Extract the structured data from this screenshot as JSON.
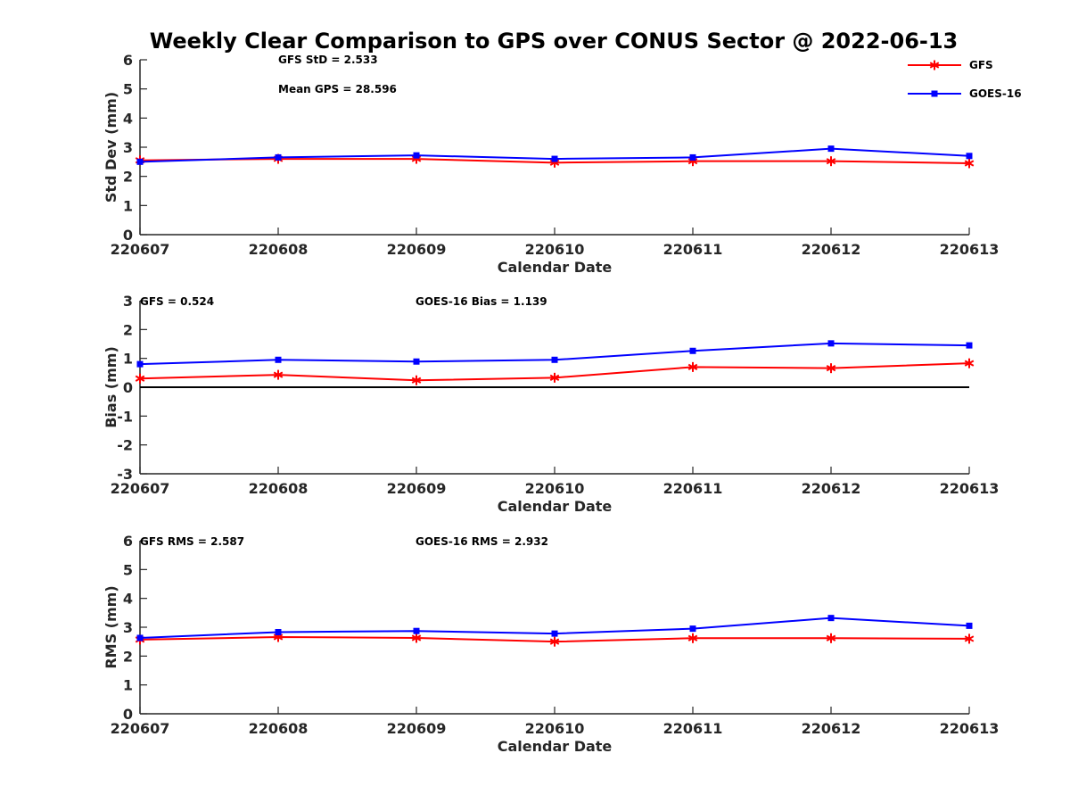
{
  "figure": {
    "title": "Weekly Clear Comparison to GPS over CONUS Sector @ 2022-06-13"
  },
  "legend": {
    "position": "top-right of first panel",
    "entries": [
      {
        "label": "GFS",
        "color": "#ff0000",
        "marker": "asterisk"
      },
      {
        "label": "GOES-16",
        "color": "#0000ff",
        "marker": "square"
      }
    ]
  },
  "chart_data": [
    {
      "type": "line",
      "title": "Weekly Clear Comparison to GPS over CONUS Sector @ 2022-06-13",
      "xlabel": "Calendar Date",
      "ylabel": "Std Dev (mm)",
      "categories": [
        "220607",
        "220608",
        "220609",
        "220610",
        "220611",
        "220612",
        "220613"
      ],
      "ylim": [
        0,
        6
      ],
      "yticks": [
        0,
        1,
        2,
        3,
        4,
        5,
        6
      ],
      "grid": false,
      "zero_line": false,
      "annotations": [
        "GFS StD = 2.533",
        "Mean GPS = 28.596"
      ],
      "series": [
        {
          "name": "GFS",
          "color": "#ff0000",
          "marker": "asterisk",
          "values": [
            2.55,
            2.6,
            2.6,
            2.47,
            2.52,
            2.52,
            2.45
          ]
        },
        {
          "name": "GOES-16",
          "color": "#0000ff",
          "marker": "square",
          "values": [
            2.5,
            2.65,
            2.72,
            2.6,
            2.65,
            2.95,
            2.7
          ]
        }
      ]
    },
    {
      "type": "line",
      "title": "",
      "xlabel": "Calendar Date",
      "ylabel": "Bias (mm)",
      "categories": [
        "220607",
        "220608",
        "220609",
        "220610",
        "220611",
        "220612",
        "220613"
      ],
      "ylim": [
        -3,
        3
      ],
      "yticks": [
        -3,
        -2,
        -1,
        0,
        1,
        2,
        3
      ],
      "grid": false,
      "zero_line": true,
      "annotations": [
        "GFS = 0.524",
        "GOES-16 Bias  = 1.139"
      ],
      "series": [
        {
          "name": "GFS",
          "color": "#ff0000",
          "marker": "asterisk",
          "values": [
            0.3,
            0.43,
            0.24,
            0.33,
            0.7,
            0.66,
            0.83
          ]
        },
        {
          "name": "GOES-16",
          "color": "#0000ff",
          "marker": "square",
          "values": [
            0.8,
            0.95,
            0.89,
            0.95,
            1.26,
            1.52,
            1.45
          ]
        }
      ]
    },
    {
      "type": "line",
      "title": "",
      "xlabel": "Calendar Date",
      "ylabel": "RMS (mm)",
      "categories": [
        "220607",
        "220608",
        "220609",
        "220610",
        "220611",
        "220612",
        "220613"
      ],
      "ylim": [
        0,
        6
      ],
      "yticks": [
        0,
        1,
        2,
        3,
        4,
        5,
        6
      ],
      "grid": false,
      "zero_line": false,
      "annotations": [
        "GFS RMS = 2.587",
        "GOES-16 RMS = 2.932"
      ],
      "series": [
        {
          "name": "GFS",
          "color": "#ff0000",
          "marker": "asterisk",
          "values": [
            2.57,
            2.66,
            2.63,
            2.5,
            2.62,
            2.62,
            2.6
          ]
        },
        {
          "name": "GOES-16",
          "color": "#0000ff",
          "marker": "square",
          "values": [
            2.63,
            2.83,
            2.87,
            2.78,
            2.95,
            3.32,
            3.05
          ]
        }
      ]
    }
  ]
}
